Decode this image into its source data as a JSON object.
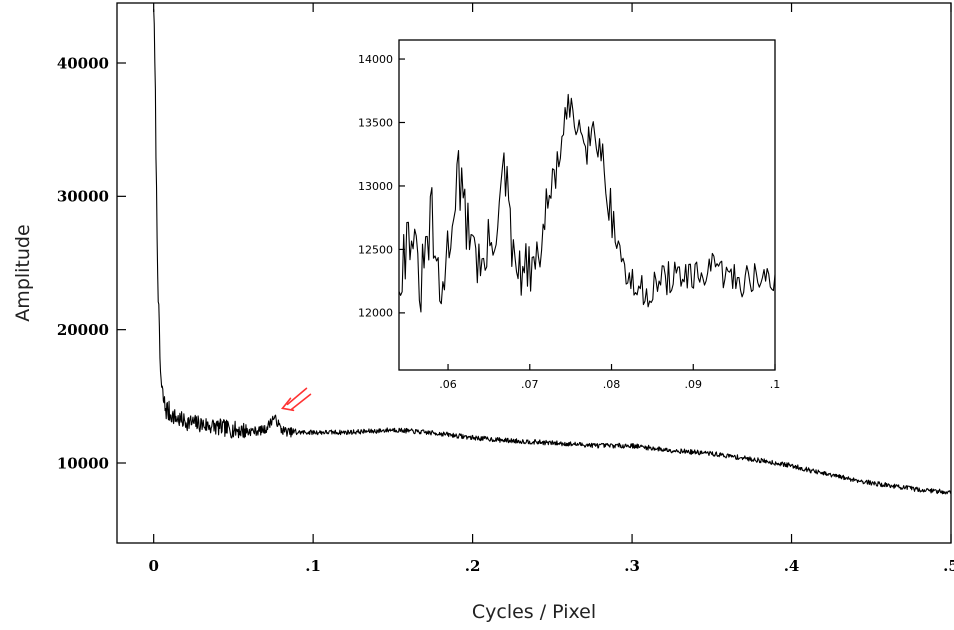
{
  "chart_data": [
    {
      "type": "line",
      "role": "main",
      "xlabel": "Cycles / Pixel",
      "ylabel": "Amplitude",
      "xlim": [
        -0.023,
        0.5
      ],
      "ylim": [
        4000,
        44500
      ],
      "x_ticks": [
        0,
        0.1,
        0.2,
        0.3,
        0.4,
        0.5
      ],
      "x_tick_labels": [
        "0",
        ".1",
        ".2",
        ".3",
        ".4",
        ".5"
      ],
      "y_ticks": [
        10000,
        20000,
        30000,
        40000
      ],
      "y_tick_labels": [
        "10000",
        "20000",
        "30000",
        "40000"
      ],
      "grid": false,
      "series": [
        {
          "x": [
            0.0,
            0.001,
            0.002,
            0.003,
            0.004,
            0.005,
            0.007,
            0.01,
            0.015,
            0.02,
            0.03,
            0.04,
            0.05,
            0.06,
            0.065,
            0.07,
            0.073,
            0.075,
            0.077,
            0.08,
            0.085,
            0.09,
            0.1,
            0.12,
            0.14,
            0.15,
            0.16,
            0.18,
            0.2,
            0.22,
            0.25,
            0.28,
            0.3,
            0.32,
            0.35,
            0.38,
            0.4,
            0.42,
            0.45,
            0.48,
            0.5
          ],
          "y": [
            44500,
            38000,
            28000,
            22000,
            17500,
            15500,
            14200,
            13700,
            13300,
            13100,
            12900,
            12700,
            12500,
            12400,
            12400,
            12500,
            13000,
            13400,
            13200,
            12500,
            12300,
            12300,
            12300,
            12300,
            12400,
            12500,
            12400,
            12200,
            11900,
            11700,
            11500,
            11300,
            11300,
            11000,
            10700,
            10200,
            9800,
            9200,
            8500,
            8000,
            7800
          ]
        }
      ],
      "annotations": [
        {
          "type": "arrow",
          "label": "",
          "points_to": [
            0.077,
            13500
          ],
          "color": "#ff3333"
        }
      ]
    },
    {
      "type": "line",
      "role": "inset",
      "xlim": [
        0.054,
        0.1
      ],
      "ylim": [
        11550,
        14150
      ],
      "x_ticks": [
        0.06,
        0.07,
        0.08,
        0.09,
        0.1
      ],
      "x_tick_labels": [
        ".06",
        ".07",
        ".08",
        ".09",
        ".1"
      ],
      "y_ticks": [
        12000,
        12500,
        13000,
        13500,
        14000
      ],
      "y_tick_labels": [
        "12000",
        "12500",
        "13000",
        "13500",
        "14000"
      ],
      "grid": false,
      "series": [
        {
          "x": [
            0.054,
            0.0555,
            0.0565,
            0.058,
            0.059,
            0.06,
            0.0612,
            0.062,
            0.063,
            0.064,
            0.0655,
            0.067,
            0.068,
            0.07,
            0.071,
            0.072,
            0.0735,
            0.0745,
            0.075,
            0.0755,
            0.0765,
            0.077,
            0.078,
            0.079,
            0.08,
            0.081,
            0.082,
            0.084,
            0.086,
            0.088,
            0.09,
            0.092,
            0.094,
            0.096,
            0.098,
            0.1
          ],
          "y": [
            12300,
            12700,
            12150,
            12750,
            12050,
            12500,
            13150,
            12750,
            12650,
            12300,
            12600,
            13100,
            12350,
            12300,
            12400,
            12800,
            13200,
            13500,
            13650,
            13450,
            13550,
            13350,
            13450,
            13200,
            12750,
            12500,
            12250,
            12150,
            12250,
            12300,
            12250,
            12350,
            12300,
            12250,
            12300,
            12200
          ]
        }
      ]
    }
  ]
}
